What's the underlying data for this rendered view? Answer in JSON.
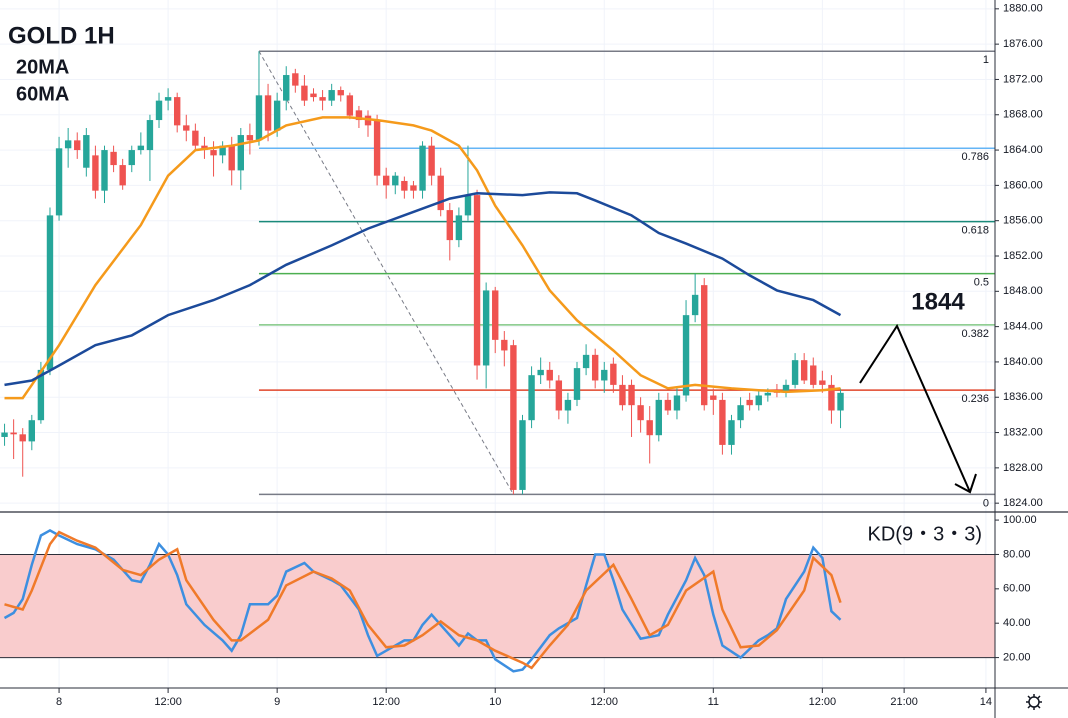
{
  "chart_data": [
    {
      "type": "candlestick",
      "title": "GOLD 1H",
      "up_color": "#26a69a",
      "down_color": "#ef5350",
      "candles": [
        [
          1831.5,
          1833.0,
          1830.5,
          1832.0
        ],
        [
          1832.0,
          1833.5,
          1829.0,
          1831.8
        ],
        [
          1831.8,
          1832.5,
          1827.0,
          1831.0
        ],
        [
          1831.0,
          1834.0,
          1830.0,
          1833.4
        ],
        [
          1833.4,
          1840.0,
          1833.0,
          1839.1
        ],
        [
          1839.1,
          1857.5,
          1838.5,
          1856.6
        ],
        [
          1856.6,
          1865.5,
          1856.0,
          1864.2
        ],
        [
          1864.2,
          1866.5,
          1862.0,
          1865.1
        ],
        [
          1865.1,
          1866.0,
          1863.0,
          1864.0
        ],
        [
          1862.0,
          1866.5,
          1861.0,
          1865.7
        ],
        [
          1863.4,
          1864.5,
          1858.5,
          1859.4
        ],
        [
          1859.4,
          1864.5,
          1858.0,
          1864.0
        ],
        [
          1863.8,
          1864.5,
          1861.5,
          1862.3
        ],
        [
          1862.3,
          1863.0,
          1859.5,
          1860.0
        ],
        [
          1862.3,
          1864.5,
          1861.5,
          1864.0
        ],
        [
          1864.0,
          1866.0,
          1863.5,
          1864.5
        ],
        [
          1864.0,
          1868.0,
          1860.5,
          1867.4
        ],
        [
          1867.4,
          1870.5,
          1866.5,
          1869.6
        ],
        [
          1869.6,
          1871.0,
          1868.5,
          1870.0
        ],
        [
          1870.0,
          1870.5,
          1866.0,
          1866.8
        ],
        [
          1866.8,
          1868.0,
          1865.0,
          1866.2
        ],
        [
          1866.2,
          1867.0,
          1864.0,
          1864.5
        ],
        [
          1864.5,
          1865.5,
          1863.0,
          1864.0
        ],
        [
          1864.0,
          1865.0,
          1861.0,
          1863.4
        ],
        [
          1863.4,
          1865.0,
          1862.5,
          1864.5
        ],
        [
          1864.5,
          1865.5,
          1860.0,
          1861.7
        ],
        [
          1861.7,
          1866.5,
          1859.5,
          1865.7
        ],
        [
          1865.7,
          1867.0,
          1863.5,
          1865.1
        ],
        [
          1865.1,
          1875.2,
          1864.5,
          1870.2
        ],
        [
          1870.2,
          1871.5,
          1865.0,
          1866.2
        ],
        [
          1866.2,
          1870.5,
          1865.5,
          1869.6
        ],
        [
          1869.6,
          1873.5,
          1868.5,
          1872.5
        ],
        [
          1872.7,
          1873.2,
          1870.5,
          1871.3
        ],
        [
          1871.3,
          1872.5,
          1869.0,
          1869.6
        ],
        [
          1870.4,
          1871.0,
          1869.5,
          1870.0
        ],
        [
          1870.0,
          1870.8,
          1868.5,
          1869.6
        ],
        [
          1869.6,
          1871.5,
          1869.0,
          1870.8
        ],
        [
          1870.8,
          1871.2,
          1869.5,
          1870.2
        ],
        [
          1870.2,
          1870.5,
          1867.5,
          1867.9
        ],
        [
          1868.5,
          1869.0,
          1866.5,
          1867.4
        ],
        [
          1867.9,
          1868.5,
          1865.5,
          1866.8
        ],
        [
          1867.4,
          1868.0,
          1860.0,
          1861.1
        ],
        [
          1861.1,
          1862.0,
          1858.5,
          1860.0
        ],
        [
          1860.0,
          1861.5,
          1859.0,
          1861.1
        ],
        [
          1860.5,
          1861.0,
          1858.5,
          1859.4
        ],
        [
          1860.0,
          1860.5,
          1858.5,
          1859.4
        ],
        [
          1859.4,
          1865.0,
          1858.5,
          1864.5
        ],
        [
          1864.5,
          1865.5,
          1860.0,
          1861.1
        ],
        [
          1861.1,
          1862.0,
          1856.5,
          1857.2
        ],
        [
          1857.2,
          1858.0,
          1851.5,
          1853.8
        ],
        [
          1853.8,
          1857.5,
          1853.0,
          1856.6
        ],
        [
          1856.6,
          1864.5,
          1856.0,
          1858.9
        ],
        [
          1858.9,
          1859.5,
          1838.0,
          1839.6
        ],
        [
          1839.6,
          1849.0,
          1837.0,
          1848.1
        ],
        [
          1848.1,
          1848.5,
          1841.0,
          1842.5
        ],
        [
          1842.5,
          1843.5,
          1839.5,
          1841.3
        ],
        [
          1841.9,
          1842.5,
          1825.0,
          1825.5
        ],
        [
          1825.5,
          1834.0,
          1825.0,
          1833.4
        ],
        [
          1833.4,
          1839.5,
          1832.5,
          1838.5
        ],
        [
          1838.5,
          1840.5,
          1837.5,
          1839.1
        ],
        [
          1839.1,
          1840.0,
          1837.0,
          1837.9
        ],
        [
          1837.9,
          1838.5,
          1833.5,
          1834.5
        ],
        [
          1834.5,
          1836.5,
          1833.0,
          1835.7
        ],
        [
          1835.7,
          1840.0,
          1835.0,
          1839.3
        ],
        [
          1839.3,
          1842.0,
          1838.5,
          1840.8
        ],
        [
          1840.8,
          1841.5,
          1837.0,
          1837.9
        ],
        [
          1837.9,
          1840.0,
          1836.5,
          1839.1
        ],
        [
          1839.8,
          1840.5,
          1836.5,
          1837.4
        ],
        [
          1837.4,
          1838.5,
          1834.5,
          1835.1
        ],
        [
          1837.4,
          1838.0,
          1831.5,
          1835.1
        ],
        [
          1835.1,
          1836.0,
          1832.0,
          1833.4
        ],
        [
          1833.4,
          1835.0,
          1828.5,
          1831.7
        ],
        [
          1831.7,
          1836.5,
          1831.0,
          1835.7
        ],
        [
          1835.7,
          1836.5,
          1834.0,
          1834.5
        ],
        [
          1834.5,
          1837.0,
          1833.5,
          1836.2
        ],
        [
          1836.2,
          1847.0,
          1835.5,
          1845.3
        ],
        [
          1845.3,
          1850.0,
          1844.5,
          1847.6
        ],
        [
          1848.7,
          1849.5,
          1834.5,
          1835.1
        ],
        [
          1836.2,
          1837.0,
          1834.0,
          1835.7
        ],
        [
          1835.7,
          1836.5,
          1829.5,
          1830.6
        ],
        [
          1830.6,
          1834.0,
          1829.5,
          1833.4
        ],
        [
          1833.4,
          1836.0,
          1832.5,
          1835.1
        ],
        [
          1835.7,
          1836.5,
          1834.5,
          1835.1
        ],
        [
          1835.1,
          1836.8,
          1834.5,
          1836.2
        ],
        [
          1836.2,
          1837.0,
          1835.5,
          1836.5
        ],
        [
          1836.8,
          1837.5,
          1836.0,
          1836.5
        ],
        [
          1836.5,
          1838.0,
          1836.0,
          1837.4
        ],
        [
          1837.4,
          1841.0,
          1837.0,
          1840.2
        ],
        [
          1840.2,
          1841.0,
          1837.5,
          1837.9
        ],
        [
          1839.6,
          1840.5,
          1837.0,
          1837.4
        ],
        [
          1837.9,
          1839.0,
          1836.5,
          1837.4
        ],
        [
          1837.4,
          1838.5,
          1833.0,
          1834.5
        ],
        [
          1834.5,
          1837.0,
          1832.5,
          1836.5
        ]
      ],
      "series": [
        {
          "name": "20MA",
          "color": "#f59a1b",
          "x": [
            0,
            2,
            3,
            6,
            10,
            15,
            18,
            21,
            25,
            28,
            31,
            35,
            38,
            41,
            45,
            47,
            50,
            52,
            54,
            57,
            60,
            63,
            67,
            70,
            73,
            76,
            80,
            83,
            86,
            90,
            92
          ],
          "values": [
            1835.9,
            1835.9,
            1837.4,
            1841.9,
            1848.7,
            1855.5,
            1861.1,
            1864.0,
            1864.5,
            1865.1,
            1866.8,
            1867.7,
            1867.7,
            1867.4,
            1866.8,
            1866.2,
            1864.5,
            1861.7,
            1857.7,
            1853.2,
            1848.1,
            1844.7,
            1841.3,
            1838.5,
            1837.0,
            1837.4,
            1837.0,
            1836.8,
            1836.6,
            1836.8,
            1837.0
          ]
        },
        {
          "name": "60MA",
          "color": "#1c4a9a",
          "x": [
            0,
            3,
            6,
            10,
            14,
            18,
            23,
            27,
            31,
            36,
            40,
            45,
            49,
            52,
            57,
            60,
            63,
            65,
            69,
            72,
            75,
            79,
            82,
            85,
            89,
            92
          ],
          "values": [
            1837.4,
            1837.9,
            1839.6,
            1841.9,
            1843.0,
            1845.3,
            1847.0,
            1848.7,
            1851.0,
            1853.2,
            1855.1,
            1857.0,
            1858.5,
            1859.1,
            1858.9,
            1859.2,
            1859.1,
            1858.3,
            1856.6,
            1854.6,
            1853.4,
            1851.7,
            1849.8,
            1848.1,
            1847.0,
            1845.3
          ]
        }
      ],
      "fib_x": [
        28,
        56
      ],
      "fib_levels": [
        {
          "ratio": 1,
          "price": 1875.2,
          "color": "#787b86"
        },
        {
          "ratio": 0.786,
          "price": 1864.2,
          "color": "#64b5f6"
        },
        {
          "ratio": 0.618,
          "price": 1855.9,
          "color": "#1a8a7a"
        },
        {
          "ratio": 0.5,
          "price": 1850.0,
          "color": "#4caf50"
        },
        {
          "ratio": 0.382,
          "price": 1844.2,
          "color": "#81c784"
        },
        {
          "ratio": 0.236,
          "price": 1836.8,
          "color": "#e0452a"
        },
        {
          "ratio": 0,
          "price": 1825.0,
          "color": "#787b86"
        }
      ],
      "annotation": "1844",
      "xlim": [
        -0.5,
        109
      ],
      "xticks": [
        {
          "value": 6,
          "label": "8"
        },
        {
          "value": 18,
          "label": "12:00"
        },
        {
          "value": 30,
          "label": "9"
        },
        {
          "value": 42,
          "label": "12:00"
        },
        {
          "value": 54,
          "label": "10"
        },
        {
          "value": 66,
          "label": "12:00"
        },
        {
          "value": 78,
          "label": "11"
        },
        {
          "value": 90,
          "label": "12:00"
        },
        {
          "value": 99,
          "label": "21:00"
        },
        {
          "value": 108,
          "label": "14"
        }
      ],
      "ylim": [
        1823,
        1881
      ],
      "yticks": [
        {
          "value": 1824,
          "label": "1824.00"
        },
        {
          "value": 1828,
          "label": "1828.00"
        },
        {
          "value": 1832,
          "label": "1832.00"
        },
        {
          "value": 1836,
          "label": "1836.00"
        },
        {
          "value": 1840,
          "label": "1840.00"
        },
        {
          "value": 1844,
          "label": "1844.00"
        },
        {
          "value": 1848,
          "label": "1848.00"
        },
        {
          "value": 1852,
          "label": "1852.00"
        },
        {
          "value": 1856,
          "label": "1856.00"
        },
        {
          "value": 1860,
          "label": "1860.00"
        },
        {
          "value": 1864,
          "label": "1864.00"
        },
        {
          "value": 1868,
          "label": "1868.00"
        },
        {
          "value": 1872,
          "label": "1872.00"
        },
        {
          "value": 1876,
          "label": "1876.00"
        },
        {
          "value": 1880,
          "label": "1880.00"
        }
      ]
    },
    {
      "type": "line",
      "title": "KD(9・3・3)",
      "band": [
        20,
        80
      ],
      "band_color": "#f9cccd",
      "series": [
        {
          "color": "#3d8fe0",
          "x": [
            0,
            1,
            2,
            3,
            4,
            5,
            6,
            8,
            10,
            12,
            14,
            15,
            16,
            17,
            18,
            19,
            20,
            22,
            24,
            25,
            26,
            27,
            29,
            30,
            31,
            33,
            34,
            36,
            37,
            39,
            40,
            41,
            42,
            44,
            45,
            46,
            47,
            48,
            50,
            51,
            52,
            53,
            54,
            56,
            57,
            58,
            60,
            61,
            63,
            64,
            65,
            66,
            67,
            68,
            70,
            72,
            73,
            75,
            76,
            77,
            78,
            79,
            81,
            83,
            84,
            85,
            86,
            88,
            89,
            90,
            91,
            92
          ],
          "values": [
            43,
            46,
            54,
            74,
            91,
            94,
            91,
            86,
            83,
            77,
            65,
            64,
            74,
            86,
            80,
            68,
            51,
            39,
            30,
            24,
            33,
            51,
            51,
            56,
            70,
            75,
            70,
            65,
            62,
            48,
            33,
            21,
            24,
            30,
            30,
            39,
            45,
            39,
            27,
            34,
            30,
            30,
            19,
            12,
            13,
            19,
            33,
            37,
            43,
            62,
            80,
            80,
            65,
            48,
            31,
            33,
            45,
            65,
            78,
            68,
            45,
            27,
            20,
            30,
            33,
            37,
            54,
            70,
            84,
            78,
            47,
            42
          ]
        },
        {
          "color": "#f07a2a",
          "x": [
            0,
            2,
            3,
            5,
            6,
            8,
            10,
            13,
            15,
            17,
            19,
            20,
            23,
            25,
            26,
            29,
            31,
            34,
            36,
            38,
            40,
            42,
            44,
            46,
            48,
            50,
            52,
            54,
            57,
            58,
            60,
            62,
            64,
            67,
            69,
            71,
            73,
            75,
            78,
            79,
            81,
            83,
            85,
            88,
            89,
            91,
            92
          ],
          "values": [
            51,
            48,
            59,
            86,
            93,
            88,
            84,
            71,
            68,
            77,
            83,
            65,
            42,
            30,
            30,
            42,
            62,
            70,
            66,
            59,
            39,
            26,
            27,
            33,
            41,
            33,
            30,
            24,
            17,
            14,
            27,
            39,
            59,
            74,
            54,
            33,
            39,
            59,
            70,
            48,
            26,
            27,
            36,
            59,
            78,
            68,
            52
          ]
        }
      ],
      "ylim": [
        2.3,
        104.7
      ],
      "yticks": [
        {
          "value": 20,
          "label": "20.00"
        },
        {
          "value": 40,
          "label": "40.00"
        },
        {
          "value": 60,
          "label": "60.00"
        },
        {
          "value": 80,
          "label": "80.00"
        },
        {
          "value": 100,
          "label": "100.00"
        }
      ]
    }
  ]
}
